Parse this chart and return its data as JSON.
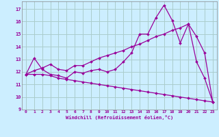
{
  "background_color": "#cceeff",
  "grid_color": "#aacccc",
  "line_color": "#990099",
  "spine_color": "#888888",
  "xlim": [
    -0.5,
    23.5
  ],
  "ylim": [
    9,
    17.6
  ],
  "yticks": [
    9,
    10,
    11,
    12,
    13,
    14,
    15,
    16,
    17
  ],
  "xticks": [
    0,
    1,
    2,
    3,
    4,
    5,
    6,
    7,
    8,
    9,
    10,
    11,
    12,
    13,
    14,
    15,
    16,
    17,
    18,
    19,
    20,
    21,
    22,
    23
  ],
  "xlabel": "Windchill (Refroidissement éolien,°C)",
  "series": [
    [
      11.8,
      13.1,
      12.2,
      11.8,
      11.7,
      11.5,
      12.0,
      11.9,
      12.1,
      12.2,
      12.0,
      12.2,
      12.8,
      13.5,
      15.0,
      15.0,
      16.3,
      17.3,
      16.1,
      14.3,
      15.8,
      12.8,
      11.5,
      9.6
    ],
    [
      11.8,
      12.1,
      12.3,
      12.6,
      12.2,
      12.1,
      12.5,
      12.5,
      12.8,
      13.1,
      13.3,
      13.5,
      13.7,
      14.0,
      14.2,
      14.5,
      14.8,
      15.0,
      15.3,
      15.5,
      15.8,
      14.8,
      13.5,
      9.6
    ],
    [
      11.8,
      11.8,
      11.8,
      11.7,
      11.5,
      11.4,
      11.3,
      11.2,
      11.1,
      11.0,
      10.9,
      10.8,
      10.7,
      10.6,
      10.5,
      10.4,
      10.3,
      10.2,
      10.1,
      10.0,
      9.9,
      9.8,
      9.7,
      9.6
    ]
  ]
}
